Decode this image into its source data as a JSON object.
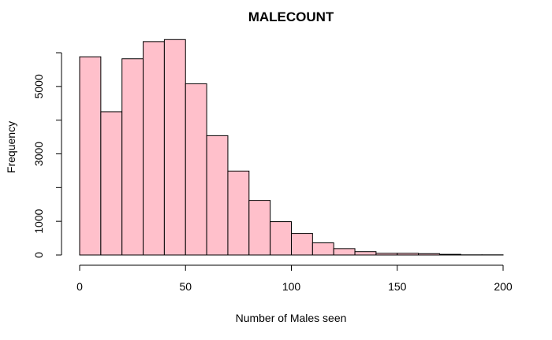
{
  "chart_data": {
    "type": "bar",
    "title": "MALECOUNT",
    "xlabel": "Number of Males seen",
    "ylabel": "Frequency",
    "bar_color": "#ffc0cb",
    "bin_width": 10,
    "xlim": [
      0,
      200
    ],
    "ylim": [
      0,
      6000
    ],
    "x_ticks": [
      0,
      50,
      100,
      150,
      200
    ],
    "y_ticks": [
      0,
      1000,
      2000,
      3000,
      4000,
      5000,
      6000
    ],
    "y_tick_labels": [
      "0",
      "1000",
      "",
      "3000",
      "",
      "5000",
      ""
    ],
    "bins": [
      {
        "start": 0,
        "end": 10,
        "value": 5880
      },
      {
        "start": 10,
        "end": 20,
        "value": 4250
      },
      {
        "start": 20,
        "end": 30,
        "value": 5820
      },
      {
        "start": 30,
        "end": 40,
        "value": 6330
      },
      {
        "start": 40,
        "end": 50,
        "value": 6390
      },
      {
        "start": 50,
        "end": 60,
        "value": 5080
      },
      {
        "start": 60,
        "end": 70,
        "value": 3540
      },
      {
        "start": 70,
        "end": 80,
        "value": 2490
      },
      {
        "start": 80,
        "end": 90,
        "value": 1620
      },
      {
        "start": 90,
        "end": 100,
        "value": 990
      },
      {
        "start": 100,
        "end": 110,
        "value": 640
      },
      {
        "start": 110,
        "end": 120,
        "value": 360
      },
      {
        "start": 120,
        "end": 130,
        "value": 190
      },
      {
        "start": 130,
        "end": 140,
        "value": 100
      },
      {
        "start": 140,
        "end": 150,
        "value": 50
      },
      {
        "start": 150,
        "end": 160,
        "value": 50
      },
      {
        "start": 160,
        "end": 170,
        "value": 40
      },
      {
        "start": 170,
        "end": 180,
        "value": 20
      },
      {
        "start": 180,
        "end": 190,
        "value": 5
      },
      {
        "start": 190,
        "end": 200,
        "value": 5
      }
    ]
  }
}
